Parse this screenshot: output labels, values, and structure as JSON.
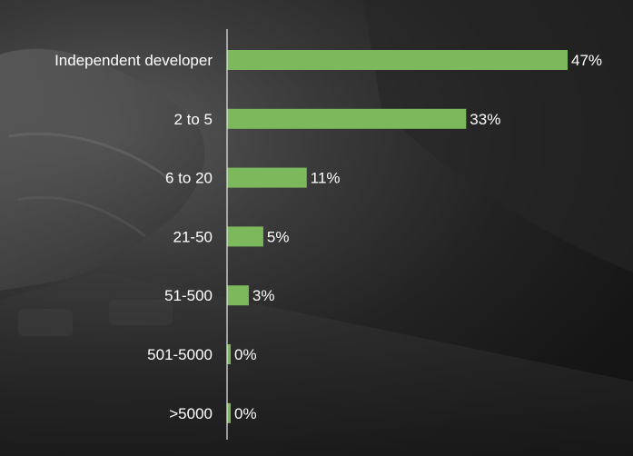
{
  "chart_data": {
    "type": "bar",
    "orientation": "horizontal",
    "categories": [
      "Independent developer",
      "2 to 5",
      "6 to 20",
      "21-50",
      "51-500",
      "501-5000",
      ">5000"
    ],
    "values": [
      47,
      33,
      11,
      5,
      3,
      0,
      0
    ],
    "value_labels": [
      "47%",
      "33%",
      "11%",
      "5%",
      "3%",
      "0%",
      "0%"
    ],
    "xlim": [
      0,
      50
    ],
    "bar_color": "#7cb85c",
    "axis_color": "#e8e8e8",
    "text_color": "#ffffff",
    "grid": false,
    "legend": "none"
  }
}
